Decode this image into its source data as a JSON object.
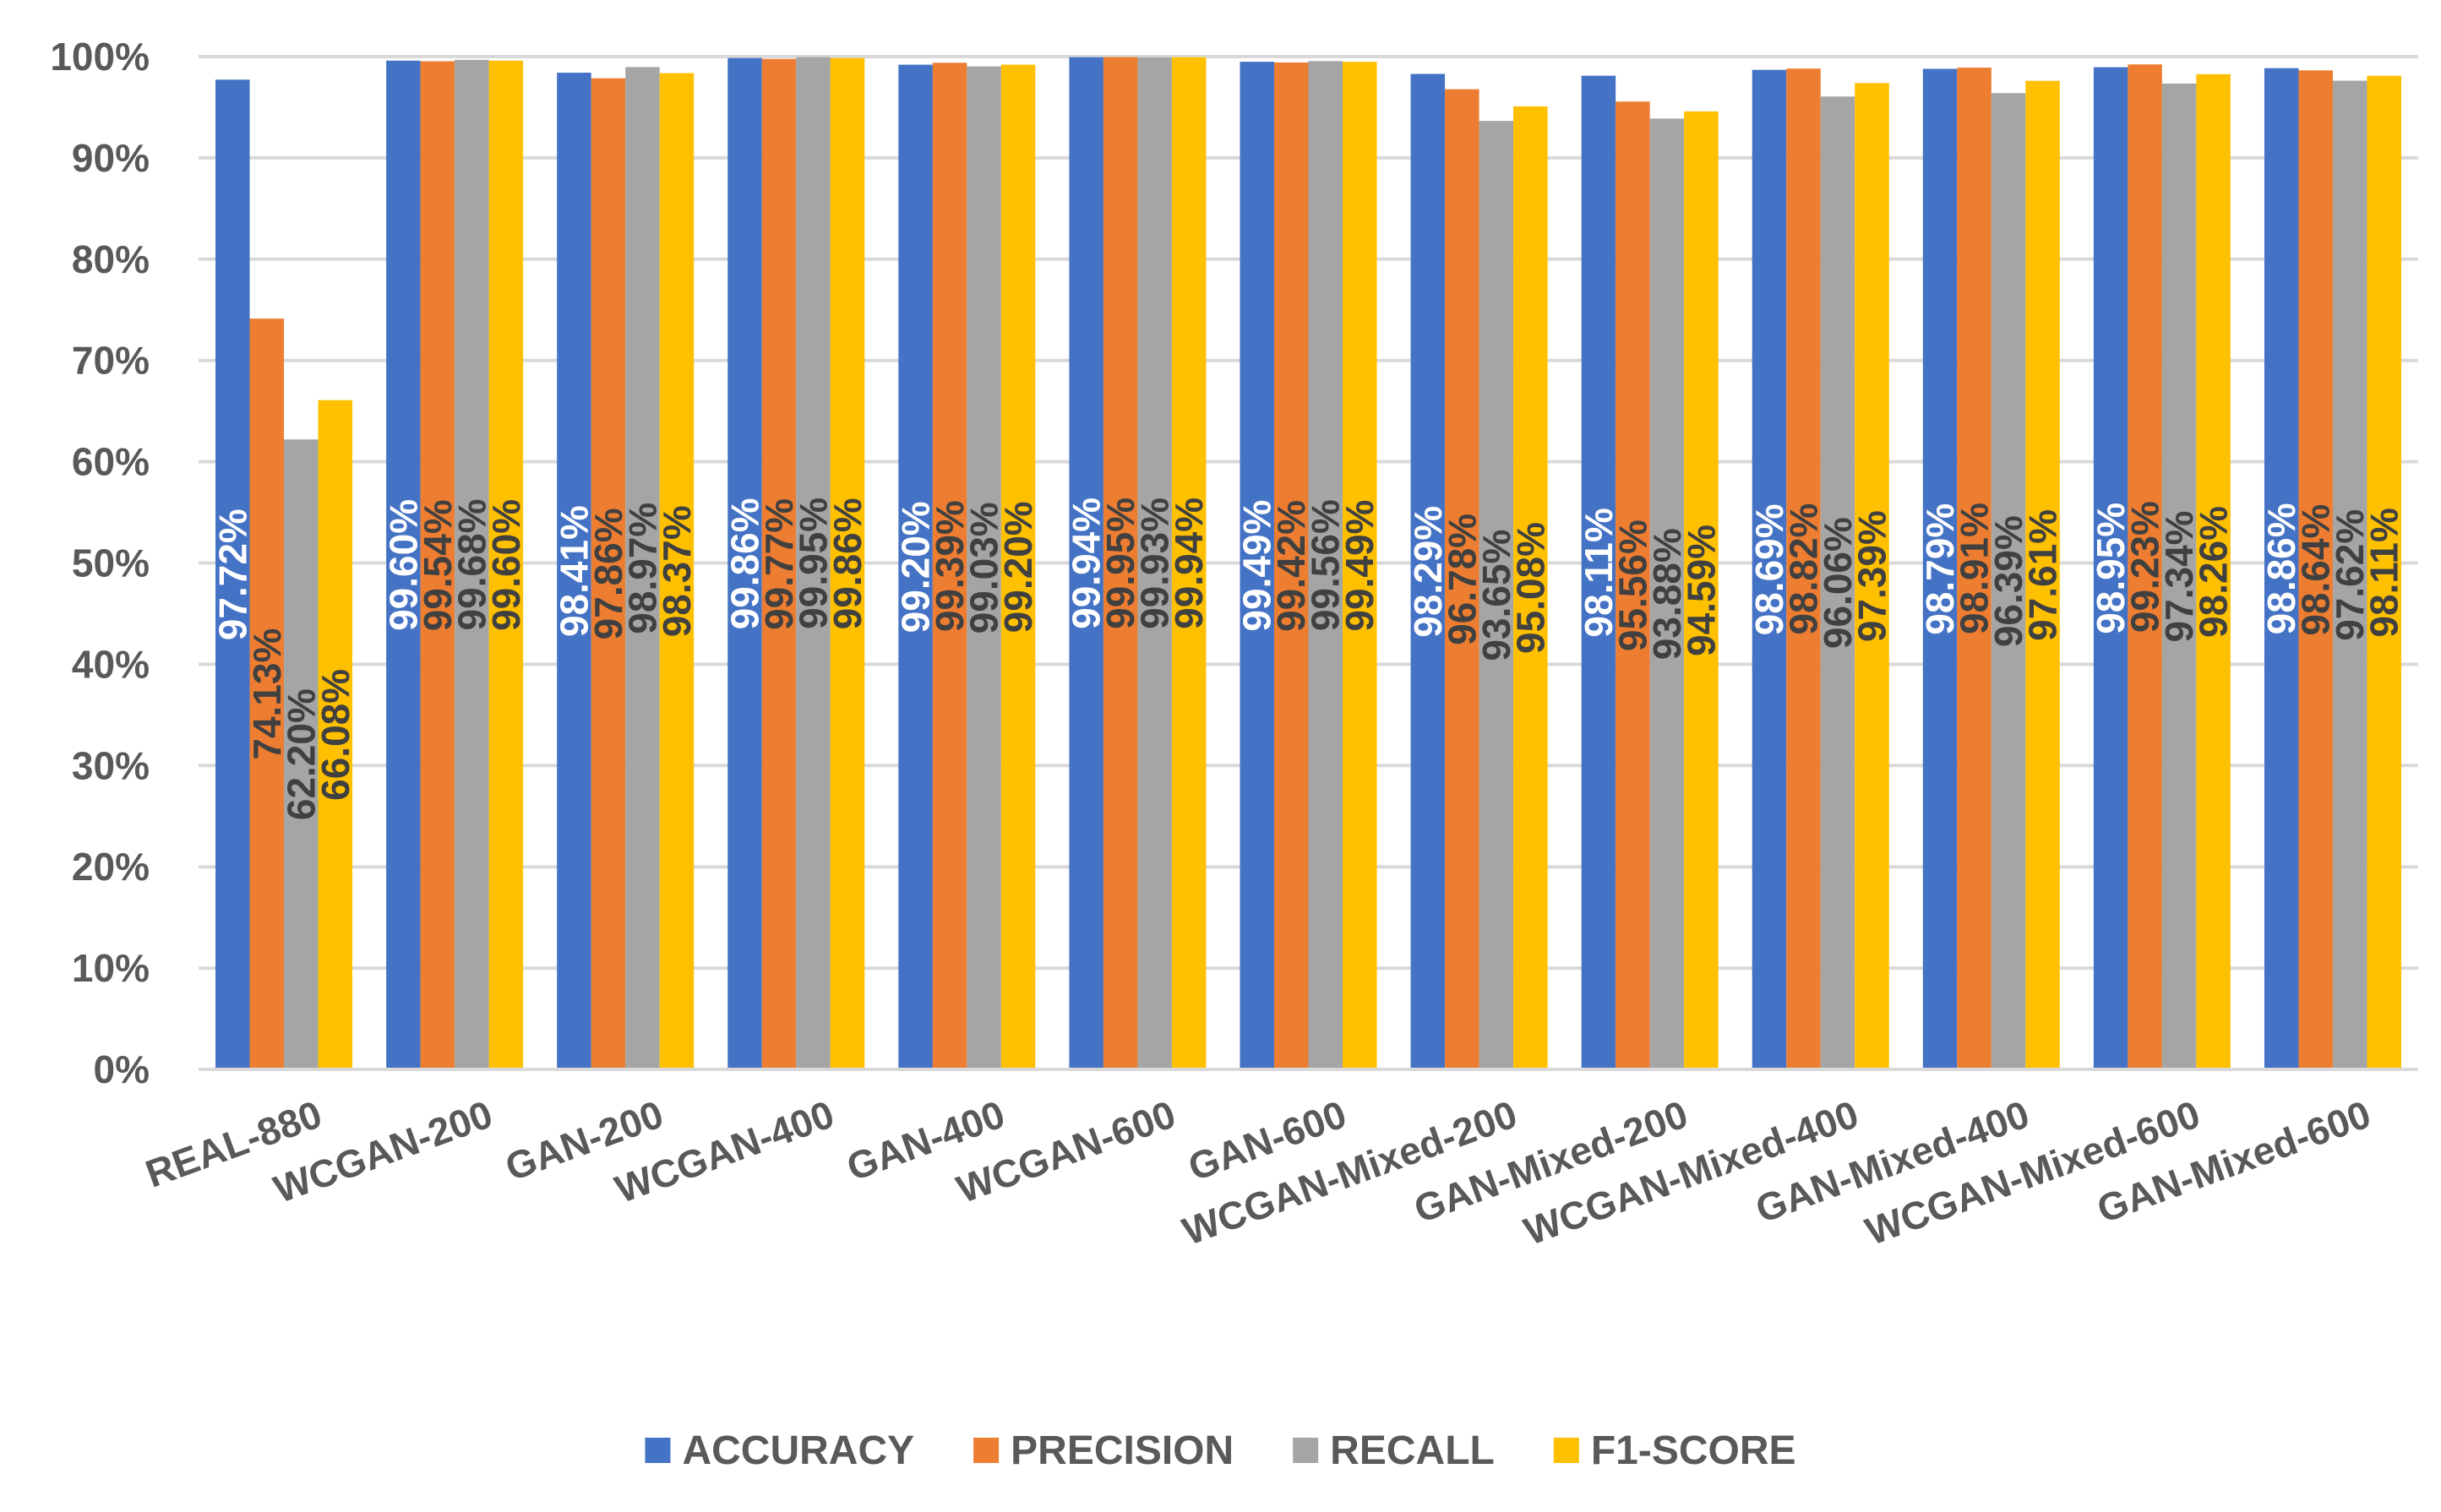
{
  "chart_data": {
    "type": "bar",
    "title": "",
    "xlabel": "",
    "ylabel": "",
    "ylim": [
      0,
      100
    ],
    "y_ticks": [
      "0%",
      "10%",
      "20%",
      "30%",
      "40%",
      "50%",
      "60%",
      "70%",
      "80%",
      "90%",
      "100%"
    ],
    "grid": true,
    "legend_position": "bottom",
    "categories": [
      "REAL-880",
      "WCGAN-200",
      "GAN-200",
      "WCGAN-400",
      "GAN-400",
      "WCGAN-600",
      "GAN-600",
      "WCGAN-Mixed-200",
      "GAN-Mixed-200",
      "WCGAN-Mixed-400",
      "GAN-Mixed-400",
      "WCGAN-Mixed-600",
      "GAN-Mixed-600"
    ],
    "series": [
      {
        "name": "ACCURACY",
        "color": "#4472C4",
        "label_color": "#ffffff",
        "values": [
          97.72,
          99.6,
          98.41,
          99.86,
          99.2,
          99.94,
          99.49,
          98.29,
          98.11,
          98.69,
          98.79,
          98.95,
          98.86
        ],
        "labels": [
          "97.72%",
          "99.60%",
          "98.41%",
          "99.86%",
          "99.20%",
          "99.94%",
          "99.49%",
          "98.29%",
          "98.11%",
          "98.69%",
          "98.79%",
          "98.95%",
          "98.86%"
        ]
      },
      {
        "name": "PRECISION",
        "color": "#ED7D31",
        "label_color": "#404040",
        "values": [
          74.13,
          99.54,
          97.86,
          99.77,
          99.39,
          99.95,
          99.42,
          96.78,
          95.56,
          98.82,
          98.91,
          99.23,
          98.64
        ],
        "labels": [
          "74.13%",
          "99.54%",
          "97.86%",
          "99.77%",
          "99.39%",
          "99.95%",
          "99.42%",
          "96.78%",
          "95.56%",
          "98.82%",
          "98.91%",
          "99.23%",
          "98.64%"
        ]
      },
      {
        "name": "RECALL",
        "color": "#A5A5A5",
        "label_color": "#404040",
        "values": [
          62.2,
          99.68,
          98.97,
          99.95,
          99.03,
          99.93,
          99.56,
          93.65,
          93.88,
          96.06,
          96.39,
          97.34,
          97.62
        ],
        "labels": [
          "62.20%",
          "99.68%",
          "98.97%",
          "99.95%",
          "99.03%",
          "99.93%",
          "99.56%",
          "93.65%",
          "93.88%",
          "96.06%",
          "96.39%",
          "97.34%",
          "97.62%"
        ]
      },
      {
        "name": "F1-SCORE",
        "color": "#FFC000",
        "label_color": "#404040",
        "values": [
          66.08,
          99.6,
          98.37,
          99.86,
          99.2,
          99.94,
          99.49,
          95.08,
          94.59,
          97.39,
          97.61,
          98.26,
          98.11
        ],
        "labels": [
          "66.08%",
          "99.60%",
          "98.37%",
          "99.86%",
          "99.20%",
          "99.94%",
          "99.49%",
          "95.08%",
          "94.59%",
          "97.39%",
          "97.61%",
          "98.26%",
          "98.11%"
        ]
      }
    ]
  }
}
